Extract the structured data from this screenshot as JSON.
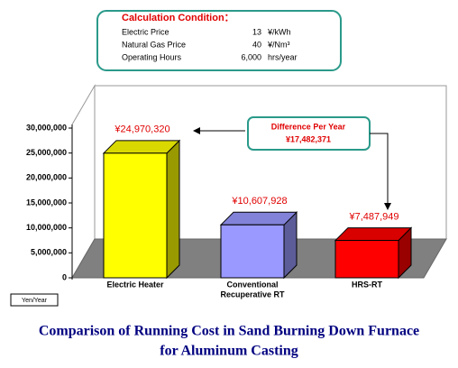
{
  "chart_data": {
    "type": "bar3d",
    "title": [
      "Comparison of Running Cost in Sand Burning Down Furnace",
      "for Aluminum Casting"
    ],
    "categories": [
      [
        "Electric  Heater"
      ],
      [
        "Conventional",
        "Recuperative RT"
      ],
      [
        "HRS-RT"
      ]
    ],
    "values": [
      24970320,
      10607928,
      7487949
    ],
    "value_labels": [
      "¥24,970,320",
      "¥10,607,928",
      "¥7,487,949"
    ],
    "colors": [
      "#ffff00",
      "#9999ff",
      "#ff0000"
    ],
    "ylim": [
      0,
      30000000
    ],
    "yticks": [
      0,
      {
        "value": 5000000,
        "label": "5,000,000"
      },
      {
        "value": 10000000,
        "label": "10,000,000"
      },
      {
        "value": 15000000,
        "label": "15,000,000"
      },
      {
        "value": 20000000,
        "label": "20,000,000"
      },
      {
        "value": 25000000,
        "label": "25,000,000"
      },
      {
        "value": 30000000,
        "label": "30,000,000"
      }
    ],
    "unit": "Yen/Year",
    "annotation": {
      "title": "Difference Per Year",
      "text": "¥17,482,371"
    },
    "conditions": {
      "title": "Calculation Condition：",
      "rows": [
        [
          "Electric Price",
          "13",
          "¥/kWh"
        ],
        [
          "Natural Gas Price",
          "40",
          "¥/Nm³"
        ],
        [
          "Operating Hours",
          "6,000",
          "hrs/year"
        ]
      ]
    }
  }
}
